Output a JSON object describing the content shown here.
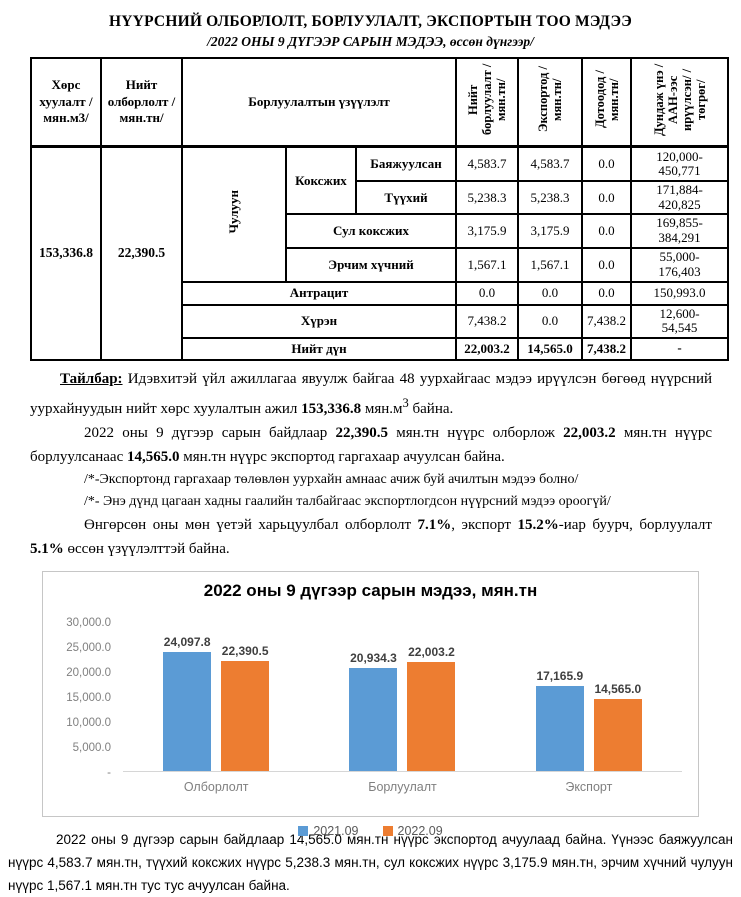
{
  "header": {
    "title": "НҮҮРСНИЙ ОЛБОРЛОЛТ, БОРЛУУЛАЛТ, ЭКСПОРТЫН ТОО МЭДЭЭ",
    "subtitle": "/2022 ОНЫ 9 ДҮГЭЭР САРЫН МЭДЭЭ, өссөн дүнгээр/"
  },
  "table": {
    "header": {
      "stripping": "Хөрс хуулалт /мян.м3/",
      "extraction": "Нийт олборлолт /мян.тн/",
      "sales_indicator": "Борлуулалтын үзүүлэлт",
      "total_sales": "Нийт борлуулалт /мян.тн/",
      "export": "Экспортод /мян.тн/",
      "domestic": "Дотоодод /мян.тн/",
      "avg_price": "Дундаж үнэ /ААН-ээс ирүүлсэн/ /төгрөг/"
    },
    "stripping_value": "153,336.8",
    "extraction_value": "22,390.5",
    "coal_group": "Чулуун",
    "coking_group": "Коксжих",
    "rows": [
      {
        "label": "Баяжуулсан",
        "sales": "4,583.7",
        "export": "4,583.7",
        "domestic": "0.0",
        "price": "120,000-\n450,771"
      },
      {
        "label": "Түүхий",
        "sales": "5,238.3",
        "export": "5,238.3",
        "domestic": "0.0",
        "price": "171,884-\n420,825"
      },
      {
        "label": "Сул коксжих",
        "sales": "3,175.9",
        "export": "3,175.9",
        "domestic": "0.0",
        "price": "169,855-\n384,291"
      },
      {
        "label": "Эрчим хүчний",
        "sales": "1,567.1",
        "export": "1,567.1",
        "domestic": "0.0",
        "price": "55,000-\n176,403"
      },
      {
        "label": "Антрацит",
        "sales": "0.0",
        "export": "0.0",
        "domestic": "0.0",
        "price": "150,993.0"
      },
      {
        "label": "Хүрэн",
        "sales": "7,438.2",
        "export": "0.0",
        "domestic": "7,438.2",
        "price": "12,600-\n54,545"
      },
      {
        "label": "Нийт дүн",
        "sales": "22,003.2",
        "export": "14,565.0",
        "domestic": "7,438.2",
        "price": "-"
      }
    ]
  },
  "notes": {
    "p1": [
      {
        "text": "Тайлбар:",
        "bold": true,
        "underline": true
      },
      {
        "text": " Идэвхитэй үйл ажиллагаа явуулж байгаа 48 уурхайгаас мэдээ ирүүлсэн бөгөөд нүүрсний уурхайнуудын нийт хөрс хуулалтын ажил "
      },
      {
        "text": "153,336.8",
        "bold": true
      },
      {
        "text": " мян.м"
      },
      {
        "text": "3",
        "sup": true
      },
      {
        "text": " байна."
      }
    ],
    "p2": [
      {
        "text": "2022 оны 9 дүгээр сарын байдлаар "
      },
      {
        "text": "22,390.5",
        "bold": true
      },
      {
        "text": " мян.тн нүүрс олборлож "
      },
      {
        "text": "22,003.2",
        "bold": true
      },
      {
        "text": " мян.тн нүүрс борлуулсанаас "
      },
      {
        "text": "14,565.0",
        "bold": true
      },
      {
        "text": " мян.тн нүүрс экспортод гаргахаар ачуулсан байна."
      }
    ],
    "p3": [
      {
        "text": "/*-Экспортонд гаргахаар төлөвлөн уурхайн амнаас ачиж буй ачилтын мэдээ болно/"
      }
    ],
    "p4": [
      {
        "text": "/*- Энэ дүнд цагаан хадны гаалийн талбайгаас экспортлогдсон нүүрсний мэдээ ороогүй/"
      }
    ],
    "p5": [
      {
        "text": "Өнгөрсөн оны мөн үетэй харьцуулбал олборлолт "
      },
      {
        "text": "7.1%",
        "bold": true
      },
      {
        "text": ", экспорт "
      },
      {
        "text": "15.2%",
        "bold": true
      },
      {
        "text": "-иар буурч, борлуулалт "
      },
      {
        "text": "5.1%",
        "bold": true
      },
      {
        "text": " өссөн үзүүлэлттэй байна."
      }
    ]
  },
  "chart_data": {
    "type": "bar",
    "title": "2022 оны 9 дүгээр сарын мэдээ, мян.тн",
    "categories": [
      "Олборлолт",
      "Борлуулалт",
      "Экспорт"
    ],
    "series": [
      {
        "name": "2021.09",
        "color": "#5B9BD5",
        "values": [
          24097.8,
          20934.3,
          17165.9
        ],
        "labels": [
          "24,097.8",
          "20,934.3",
          "17,165.9"
        ]
      },
      {
        "name": "2022.09",
        "color": "#ED7D31",
        "values": [
          22390.5,
          22003.2,
          14565.0
        ],
        "labels": [
          "22,390.5",
          "22,003.2",
          "14,565.0"
        ]
      }
    ],
    "ylim": [
      0,
      30000
    ],
    "yticks": [
      "30,000.0",
      "25,000.0",
      "20,000.0",
      "15,000.0",
      "10,000.0",
      "5,000.0",
      "-"
    ],
    "legend_position": "bottom",
    "grid": false
  },
  "footer": {
    "p1": [
      {
        "text": "2022 оны 9 дүгээр сарын байдлаар 14,565.0 мян.тн нүүрс экспортод ачуулаад байна. Үүнээс баяжуулсан нүүрс 4,583.7 мян.тн, түүхий коксжих нүүрс 5,238.3 мян.тн, сул коксжих нүүрс 3,175.9 мян.тн, эрчим хүчний чулуун нүүрс 1,567.1 мян.тн тус тус ачуулсан байна."
      }
    ]
  }
}
